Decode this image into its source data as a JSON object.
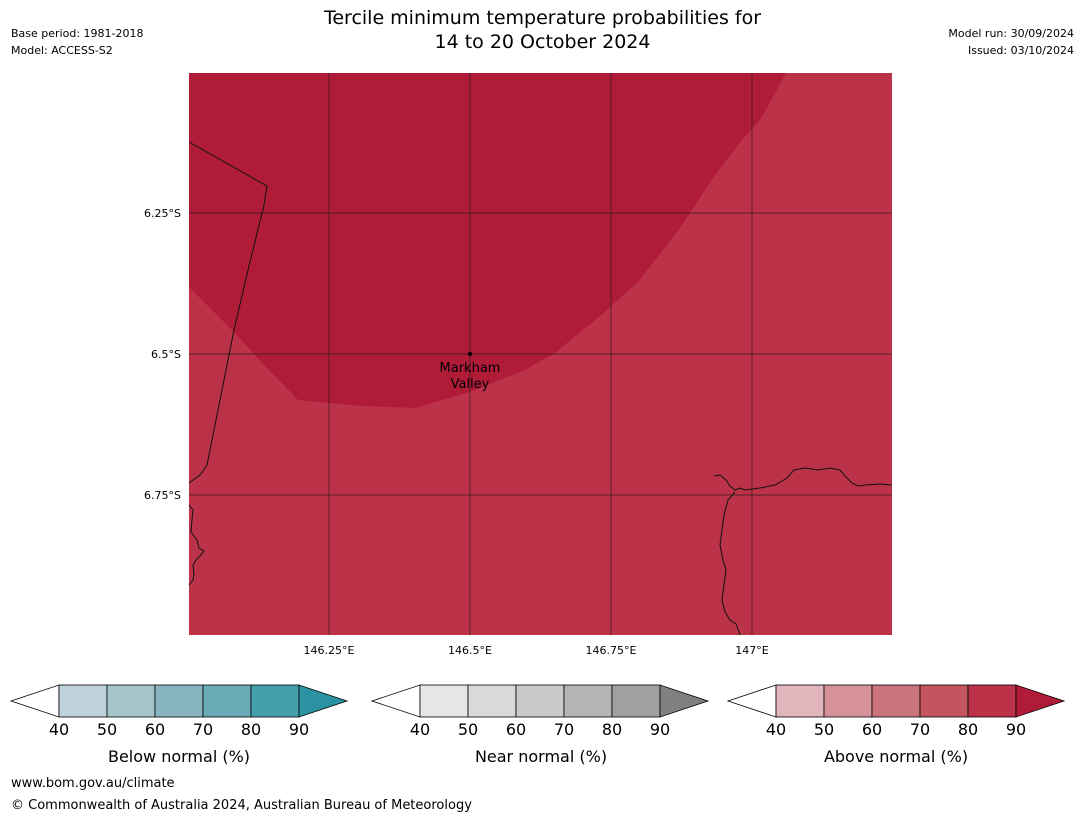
{
  "title": {
    "line1": "Tercile minimum temperature probabilities for",
    "line2": "14 to 20 October 2024"
  },
  "meta_left": {
    "base_period": "Base period: 1981-2018",
    "model": "Model: ACCESS-S2"
  },
  "meta_right": {
    "model_run": "Model run: 30/09/2024",
    "issued": "Issued: 03/10/2024"
  },
  "map": {
    "lat_ticks": [
      "6.25°S",
      "6.5°S",
      "6.75°S"
    ],
    "lon_ticks": [
      "146.25°E",
      "146.5°E",
      "146.75°E",
      "147°E"
    ],
    "place_label": {
      "line1": "Markham",
      "line2": "Valley"
    },
    "colors": {
      "above_90": "#b01c38",
      "above_80": "#bc3349"
    }
  },
  "colorbars": [
    {
      "label": "Below normal (%)",
      "ticks": [
        "40",
        "50",
        "60",
        "70",
        "80",
        "90"
      ],
      "colors": [
        "#bdd3d9",
        "#a5c5cb",
        "#89b5c0",
        "#6aabb8",
        "#469fad",
        "#2b92a2"
      ]
    },
    {
      "label": "Near normal (%)",
      "ticks": [
        "40",
        "50",
        "60",
        "70",
        "80",
        "90"
      ],
      "colors": [
        "#e6e6e6",
        "#d9d9d9",
        "#c9c9c9",
        "#b4b4b4",
        "#a0a0a0",
        "#808080"
      ]
    },
    {
      "label": "Above normal (%)",
      "ticks": [
        "40",
        "50",
        "60",
        "70",
        "80",
        "90"
      ],
      "colors": [
        "#e0b5bc",
        "#d6929b",
        "#cb747c",
        "#c35560",
        "#bc3349",
        "#b01c38"
      ]
    }
  ],
  "footer": {
    "url": "www.bom.gov.au/climate",
    "copyright": "© Commonwealth of Australia 2024, Australian Bureau of Meteorology"
  }
}
